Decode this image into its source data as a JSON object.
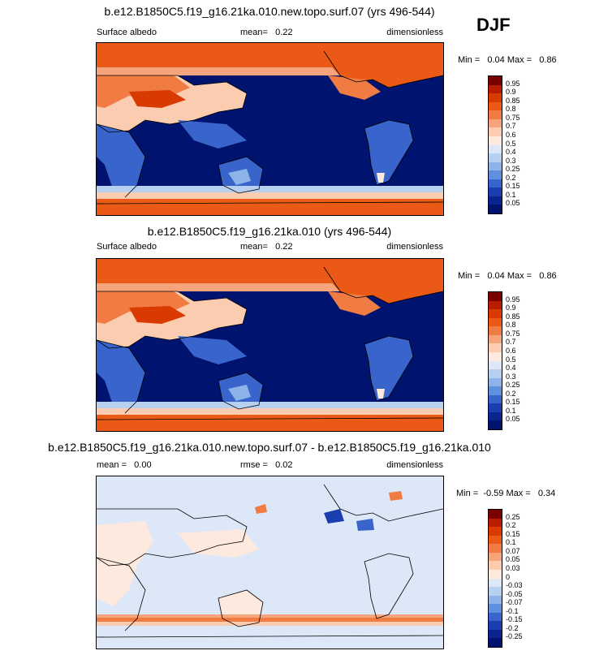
{
  "season": "DJF",
  "panels": [
    {
      "title": "b.e12.B1850C5.f19_g16.21ka.010.new.topo.surf.07 (yrs 496-544)",
      "left_label": "Surface albedo",
      "center_label": "mean=   0.22",
      "right_label": "dimensionless",
      "minmax": "Min =   0.04 Max =   0.86",
      "levels": [
        "0.95",
        "0.9",
        "0.85",
        "0.8",
        "0.75",
        "0.7",
        "0.6",
        "0.5",
        "0.4",
        "0.3",
        "0.25",
        "0.2",
        "0.15",
        "0.1",
        "0.05"
      ],
      "colors": [
        "#7a0000",
        "#b81d00",
        "#d83a00",
        "#ea5a16",
        "#f07c44",
        "#f6a47c",
        "#fcccb0",
        "#fde9dd",
        "#dce8f7",
        "#b7d0f0",
        "#8eb3e8",
        "#5f8fdd",
        "#3864cc",
        "#1a3eb0",
        "#0b2590",
        "#00136e"
      ],
      "type": "abs"
    },
    {
      "title": "b.e12.B1850C5.f19_g16.21ka.010 (yrs 496-544)",
      "left_label": "Surface albedo",
      "center_label": "mean=   0.22",
      "right_label": "dimensionless",
      "minmax": "Min =   0.04 Max =   0.86",
      "levels": [
        "0.95",
        "0.9",
        "0.85",
        "0.8",
        "0.75",
        "0.7",
        "0.6",
        "0.5",
        "0.4",
        "0.3",
        "0.25",
        "0.2",
        "0.15",
        "0.1",
        "0.05"
      ],
      "colors": [
        "#7a0000",
        "#b81d00",
        "#d83a00",
        "#ea5a16",
        "#f07c44",
        "#f6a47c",
        "#fcccb0",
        "#fde9dd",
        "#dce8f7",
        "#b7d0f0",
        "#8eb3e8",
        "#5f8fdd",
        "#3864cc",
        "#1a3eb0",
        "#0b2590",
        "#00136e"
      ],
      "type": "abs"
    },
    {
      "title": "b.e12.B1850C5.f19_g16.21ka.010.new.topo.surf.07 - b.e12.B1850C5.f19_g16.21ka.010",
      "left_label": "mean =   0.00",
      "center_label": "rmse =   0.02",
      "right_label": "dimensionless",
      "minmax": "Min =  -0.59 Max =   0.34",
      "levels": [
        "0.25",
        "0.2",
        "0.15",
        "0.1",
        "0.07",
        "0.05",
        "0.03",
        "0",
        "-0.03",
        "-0.05",
        "-0.07",
        "-0.1",
        "-0.15",
        "-0.2",
        "-0.25"
      ],
      "colors": [
        "#7a0000",
        "#b81d00",
        "#d83a00",
        "#ea5a16",
        "#f07c44",
        "#f6a47c",
        "#fcccb0",
        "#fde9dd",
        "#dce8f7",
        "#b7d0f0",
        "#8eb3e8",
        "#5f8fdd",
        "#3864cc",
        "#1a3eb0",
        "#0b2590",
        "#00136e"
      ],
      "type": "diff"
    }
  ]
}
